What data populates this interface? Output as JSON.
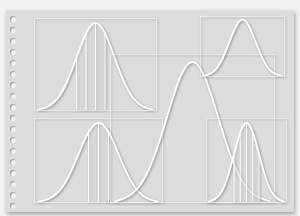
{
  "chart_data": [
    {
      "type": "line",
      "x": [
        -3,
        -2.5,
        -2,
        -1.5,
        -1,
        -0.5,
        0,
        0.5,
        1,
        1.5,
        2,
        2.5,
        3
      ],
      "values": [
        0.004,
        0.018,
        0.054,
        0.13,
        0.242,
        0.352,
        0.399,
        0.352,
        0.242,
        0.13,
        0.054,
        0.018,
        0.004
      ],
      "color": "#ffffff",
      "xlim": [
        -3.2,
        3.2
      ],
      "ylim": [
        0,
        0.42
      ],
      "xticks": [],
      "yticks": [],
      "tick_labels": false,
      "shaded_x": [
        -1,
        0.5
      ]
    },
    {
      "type": "line",
      "x": [
        -3,
        -2.5,
        -2,
        -1.5,
        -1,
        -0.5,
        0,
        0.5,
        1,
        1.5,
        2,
        2.5,
        3
      ],
      "values": [
        0.004,
        0.018,
        0.054,
        0.13,
        0.242,
        0.352,
        0.399,
        0.352,
        0.242,
        0.13,
        0.054,
        0.018,
        0.004
      ],
      "color": "#ffffff",
      "xlim": [
        -3.2,
        3.2
      ],
      "ylim": [
        0,
        0.42
      ],
      "xticks": [],
      "yticks": [],
      "tick_labels": false,
      "shaded_x": [
        -0.5,
        0.5
      ]
    },
    {
      "type": "line",
      "x": [
        -3,
        -2.5,
        -2,
        -1.5,
        -1,
        -0.5,
        0,
        0.5,
        1,
        1.5,
        2,
        2.5,
        3
      ],
      "values": [
        0.004,
        0.018,
        0.054,
        0.13,
        0.242,
        0.352,
        0.399,
        0.352,
        0.242,
        0.13,
        0.054,
        0.018,
        0.004
      ],
      "color": "#ffffff",
      "xlim": [
        -3.2,
        3.2
      ],
      "ylim": [
        0,
        0.42
      ],
      "xticks": [],
      "yticks": [],
      "tick_labels": false
    },
    {
      "type": "line",
      "x": [
        -3,
        -2.5,
        -2,
        -1.5,
        -1,
        -0.5,
        0,
        0.5,
        1,
        1.5,
        2,
        2.5,
        3
      ],
      "values": [
        0.004,
        0.018,
        0.054,
        0.13,
        0.242,
        0.352,
        0.399,
        0.352,
        0.242,
        0.13,
        0.054,
        0.018,
        0.004
      ],
      "color": "#ffffff",
      "xlim": [
        -3.2,
        3.2
      ],
      "ylim": [
        0,
        0.42
      ],
      "xticks": [],
      "yticks": [],
      "tick_labels": false
    },
    {
      "type": "line",
      "x": [
        -3,
        -2.5,
        -2,
        -1.5,
        -1,
        -0.5,
        0,
        0.5,
        1,
        1.5,
        2,
        2.5,
        3
      ],
      "values": [
        0.004,
        0.018,
        0.054,
        0.13,
        0.242,
        0.352,
        0.399,
        0.352,
        0.242,
        0.13,
        0.054,
        0.018,
        0.004
      ],
      "color": "#ffffff",
      "xlim": [
        -3.2,
        3.2
      ],
      "ylim": [
        0,
        0.42
      ],
      "xticks": [],
      "yticks": [],
      "tick_labels": false,
      "shaded_x": [
        -1,
        1
      ]
    }
  ]
}
